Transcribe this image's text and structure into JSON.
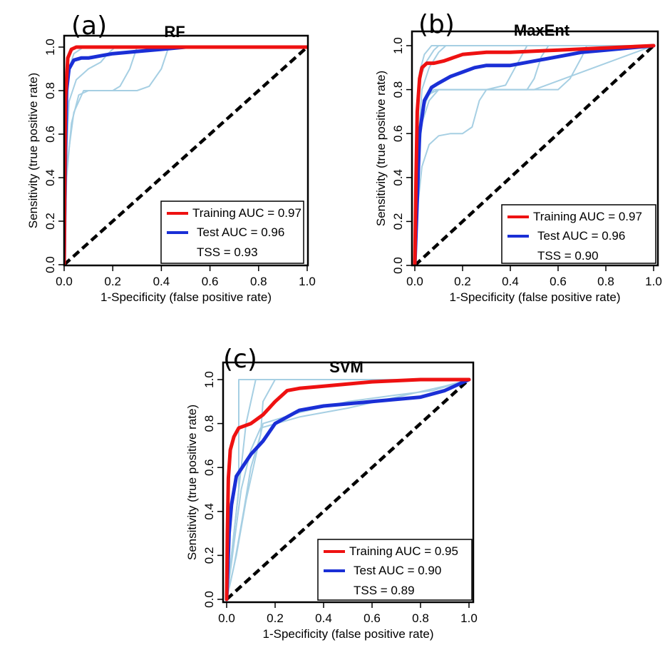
{
  "colors": {
    "training": "#ee1111",
    "test": "#1a2fd6",
    "runs": "#a6cfe3",
    "diagonal": "#000000"
  },
  "chart_data": [
    {
      "type": "line",
      "panel_label": "(a)",
      "title": "RF",
      "xlabel": "1-Specificity (false positive rate)",
      "ylabel": "Sensitivity (true positive rate)",
      "xlim": [
        0,
        1
      ],
      "ylim": [
        0,
        1
      ],
      "x_ticks": [
        "0.0",
        "0.2",
        "0.4",
        "0.6",
        "0.8",
        "1.0"
      ],
      "y_ticks": [
        "0.0",
        "0.2",
        "0.4",
        "0.6",
        "0.8",
        "1.0"
      ],
      "legend_position": "bottom-right",
      "legend": [
        "Training AUC = 0.97",
        "Test AUC = 0.96"
      ],
      "stats_text": "TSS = 0.93",
      "series": [
        {
          "role": "training",
          "x": [
            0,
            0.005,
            0.015,
            0.03,
            0.05,
            1.0
          ],
          "y": [
            0,
            0.75,
            0.95,
            0.99,
            1.0,
            1.0
          ]
        },
        {
          "role": "test",
          "x": [
            0,
            0.005,
            0.01,
            0.02,
            0.04,
            0.07,
            0.1,
            0.15,
            0.2,
            0.3,
            0.4,
            0.5,
            1.0
          ],
          "y": [
            0,
            0.5,
            0.8,
            0.9,
            0.94,
            0.95,
            0.95,
            0.96,
            0.97,
            0.98,
            0.99,
            1.0,
            1.0
          ]
        },
        {
          "role": "run",
          "x": [
            0,
            0.01,
            0.03,
            0.06,
            0.1,
            0.3,
            0.35,
            0.4,
            0.43,
            1.0
          ],
          "y": [
            0,
            0.4,
            0.65,
            0.78,
            0.8,
            0.8,
            0.82,
            0.9,
            1.0,
            1.0
          ]
        },
        {
          "role": "run",
          "x": [
            0,
            0.01,
            0.04,
            0.08,
            0.2,
            0.23,
            0.27,
            0.3,
            1.0
          ],
          "y": [
            0,
            0.45,
            0.7,
            0.8,
            0.8,
            0.82,
            0.9,
            1.0,
            1.0
          ]
        },
        {
          "role": "run",
          "x": [
            0,
            0.01,
            0.02,
            0.05,
            0.1,
            0.15,
            0.18,
            0.21,
            1.0
          ],
          "y": [
            0,
            0.5,
            0.75,
            0.85,
            0.9,
            0.93,
            0.97,
            1.0,
            1.0
          ]
        },
        {
          "role": "run",
          "x": [
            0,
            0.005,
            0.02,
            0.04,
            0.08,
            1.0
          ],
          "y": [
            0,
            0.6,
            0.9,
            0.97,
            1.0,
            1.0
          ]
        }
      ]
    },
    {
      "type": "line",
      "panel_label": "(b)",
      "title": "MaxEnt",
      "xlabel": "1-Specificity (false positive rate)",
      "ylabel": "Sensitivity (true positive rate)",
      "xlim": [
        0,
        1
      ],
      "ylim": [
        0,
        1
      ],
      "x_ticks": [
        "0.0",
        "0.2",
        "0.4",
        "0.6",
        "0.8",
        "1.0"
      ],
      "y_ticks": [
        "0.0",
        "0.2",
        "0.4",
        "0.6",
        "0.8",
        "1.0"
      ],
      "legend_position": "bottom-right",
      "legend": [
        "Training AUC = 0.97",
        "Test AUC = 0.96"
      ],
      "stats_text": "TSS = 0.90",
      "series": [
        {
          "role": "training",
          "x": [
            0,
            0.005,
            0.01,
            0.02,
            0.03,
            0.05,
            0.08,
            0.12,
            0.2,
            0.3,
            0.4,
            0.6,
            0.8,
            1.0
          ],
          "y": [
            0,
            0.4,
            0.7,
            0.85,
            0.9,
            0.92,
            0.92,
            0.93,
            0.96,
            0.97,
            0.97,
            0.98,
            0.99,
            1.0
          ]
        },
        {
          "role": "test",
          "x": [
            0,
            0.01,
            0.02,
            0.04,
            0.07,
            0.1,
            0.15,
            0.2,
            0.25,
            0.3,
            0.4,
            0.5,
            0.6,
            0.7,
            0.8,
            1.0
          ],
          "y": [
            0,
            0.3,
            0.6,
            0.75,
            0.81,
            0.83,
            0.86,
            0.88,
            0.9,
            0.91,
            0.91,
            0.93,
            0.95,
            0.97,
            0.98,
            1.0
          ]
        },
        {
          "role": "run",
          "x": [
            0,
            0.01,
            0.03,
            0.06,
            0.1,
            0.15,
            0.2,
            0.24,
            0.27,
            0.3,
            0.5,
            1.0
          ],
          "y": [
            0,
            0.25,
            0.45,
            0.55,
            0.59,
            0.6,
            0.6,
            0.63,
            0.75,
            0.8,
            0.8,
            1.0
          ]
        },
        {
          "role": "run",
          "x": [
            0,
            0.01,
            0.03,
            0.06,
            0.1,
            0.6,
            0.65,
            0.7,
            0.72,
            1.0
          ],
          "y": [
            0,
            0.4,
            0.65,
            0.75,
            0.8,
            0.8,
            0.85,
            0.95,
            1.0,
            1.0
          ]
        },
        {
          "role": "run",
          "x": [
            0,
            0.01,
            0.03,
            0.06,
            0.1,
            0.47,
            0.5,
            0.53,
            0.56,
            1.0
          ],
          "y": [
            0,
            0.45,
            0.7,
            0.78,
            0.8,
            0.8,
            0.85,
            0.95,
            1.0,
            1.0
          ]
        },
        {
          "role": "run",
          "x": [
            0,
            0.01,
            0.04,
            0.08,
            0.2,
            0.3,
            0.38,
            0.42,
            0.47,
            1.0
          ],
          "y": [
            0,
            0.5,
            0.75,
            0.8,
            0.8,
            0.8,
            0.82,
            0.9,
            1.0,
            1.0
          ]
        },
        {
          "role": "run",
          "x": [
            0,
            0.01,
            0.03,
            0.06,
            0.1,
            0.13,
            1.0
          ],
          "y": [
            0,
            0.5,
            0.8,
            0.9,
            0.97,
            1.0,
            1.0
          ]
        },
        {
          "role": "run",
          "x": [
            0,
            0.005,
            0.02,
            0.04,
            0.07,
            1.0
          ],
          "y": [
            0,
            0.6,
            0.88,
            0.96,
            1.0,
            1.0
          ]
        },
        {
          "role": "run",
          "x": [
            0,
            0.01,
            0.02,
            0.05,
            0.08,
            0.1,
            1.0
          ],
          "y": [
            0,
            0.55,
            0.85,
            0.93,
            0.98,
            1.0,
            1.0
          ]
        }
      ]
    },
    {
      "type": "line",
      "panel_label": "(c)",
      "title": "SVM",
      "xlabel": "1-Specificity (false positive rate)",
      "ylabel": "Sensitivity (true positive rate)",
      "xlim": [
        0,
        1
      ],
      "ylim": [
        0,
        1
      ],
      "x_ticks": [
        "0.0",
        "0.2",
        "0.4",
        "0.6",
        "0.8",
        "1.0"
      ],
      "y_ticks": [
        "0.0",
        "0.2",
        "0.4",
        "0.6",
        "0.8",
        "1.0"
      ],
      "legend_position": "bottom-right",
      "legend": [
        "Training AUC = 0.95",
        "Test AUC = 0.90"
      ],
      "stats_text": "TSS = 0.89",
      "series": [
        {
          "role": "training",
          "x": [
            0,
            0.003,
            0.007,
            0.015,
            0.03,
            0.05,
            0.1,
            0.15,
            0.2,
            0.25,
            0.3,
            0.4,
            0.6,
            0.8,
            1.0
          ],
          "y": [
            0,
            0.3,
            0.55,
            0.68,
            0.74,
            0.78,
            0.8,
            0.84,
            0.9,
            0.95,
            0.96,
            0.97,
            0.99,
            1.0,
            1.0
          ]
        },
        {
          "role": "test",
          "x": [
            0,
            0.005,
            0.01,
            0.02,
            0.04,
            0.07,
            0.1,
            0.15,
            0.2,
            0.3,
            0.4,
            0.6,
            0.8,
            0.9,
            1.0
          ],
          "y": [
            0,
            0.15,
            0.3,
            0.43,
            0.56,
            0.61,
            0.66,
            0.72,
            0.8,
            0.86,
            0.88,
            0.9,
            0.92,
            0.95,
            1.0
          ]
        },
        {
          "role": "run",
          "x": [
            0,
            0.05,
            0.05,
            1.0
          ],
          "y": [
            0,
            0.5,
            1.0,
            1.0
          ]
        },
        {
          "role": "run",
          "x": [
            0,
            0.02,
            0.05,
            0.08,
            0.12,
            1.0
          ],
          "y": [
            0,
            0.2,
            0.5,
            0.8,
            1.0,
            1.0
          ]
        },
        {
          "role": "run",
          "x": [
            0,
            0.03,
            0.07,
            0.1,
            0.14,
            0.15,
            0.2,
            1.0
          ],
          "y": [
            0,
            0.15,
            0.4,
            0.6,
            0.75,
            0.9,
            1.0,
            1.0
          ]
        },
        {
          "role": "run",
          "x": [
            0,
            0.04,
            0.08,
            0.12,
            0.15,
            0.3,
            0.5,
            0.7,
            0.85,
            1.0
          ],
          "y": [
            0,
            0.2,
            0.45,
            0.65,
            0.8,
            0.85,
            0.9,
            0.93,
            0.95,
            1.0
          ]
        },
        {
          "role": "run",
          "x": [
            0,
            0.03,
            0.06,
            0.1,
            0.14,
            0.3,
            0.5,
            0.7,
            0.9,
            1.0
          ],
          "y": [
            0,
            0.25,
            0.5,
            0.68,
            0.78,
            0.83,
            0.87,
            0.92,
            0.97,
            1.0
          ]
        }
      ]
    }
  ]
}
